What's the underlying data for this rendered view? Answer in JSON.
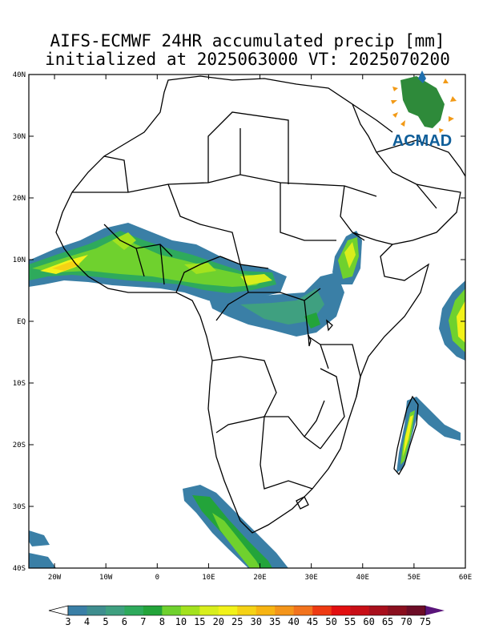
{
  "title": {
    "line1": "AIFS-ECMWF 24HR accumulated precip [mm]",
    "line2": "initialized at 2025063000 VT: 2025070200"
  },
  "axes": {
    "lat_labels": [
      "40N",
      "30N",
      "20N",
      "10N",
      "EQ",
      "10S",
      "20S",
      "30S",
      "40S"
    ],
    "lon_labels": [
      "20W",
      "10W",
      "0",
      "10E",
      "20E",
      "30E",
      "40E",
      "50E",
      "60E"
    ],
    "lon_range": [
      -25,
      60
    ],
    "lat_range": [
      -40,
      40
    ]
  },
  "colorbar": {
    "labels": [
      "3",
      "4",
      "5",
      "6",
      "7",
      "8",
      "10",
      "15",
      "20",
      "25",
      "30",
      "35",
      "40",
      "45",
      "50",
      "55",
      "60",
      "65",
      "70",
      "75"
    ],
    "colors": [
      "#3a7fa6",
      "#3f8e8f",
      "#3fa080",
      "#2eaa5c",
      "#23a43a",
      "#6fd12e",
      "#a3e21e",
      "#d8ee1c",
      "#f2f21a",
      "#f5d215",
      "#f7b412",
      "#f4951a",
      "#f2731d",
      "#ee3a12",
      "#e20f10",
      "#c80e16",
      "#a80f1c",
      "#8a0f1e",
      "#6c0c26"
    ],
    "over_color": "#5a147a",
    "under_color": "#ffffff"
  },
  "logo": {
    "text": "ACMAD",
    "colors": {
      "text": "#0f5e99",
      "africa": "#2e8a3a",
      "rays": "#f29a17",
      "drop": "#1e6fae"
    }
  }
}
